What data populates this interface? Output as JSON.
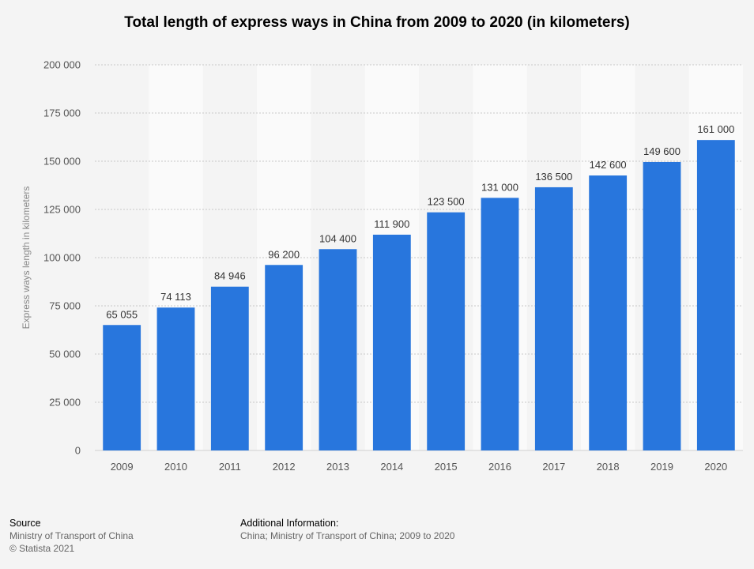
{
  "chart_data": {
    "type": "bar",
    "title": "Total length of express ways in China from 2009 to 2020 (in kilometers)",
    "ylabel": "Express ways length in kilometers",
    "xlabel": "",
    "categories": [
      "2009",
      "2010",
      "2011",
      "2012",
      "2013",
      "2014",
      "2015",
      "2016",
      "2017",
      "2018",
      "2019",
      "2020"
    ],
    "values": [
      65055,
      74113,
      84946,
      96200,
      104400,
      111900,
      123500,
      131000,
      136500,
      142600,
      149600,
      161000
    ],
    "value_labels": [
      "65 055",
      "74 113",
      "84 946",
      "96 200",
      "104 400",
      "111 900",
      "123 500",
      "131 000",
      "136 500",
      "142 600",
      "149 600",
      "161 000"
    ],
    "ylim": [
      0,
      200000
    ],
    "yticks": [
      0,
      25000,
      50000,
      75000,
      100000,
      125000,
      150000,
      175000,
      200000
    ],
    "ytick_labels": [
      "0",
      "25 000",
      "50 000",
      "75 000",
      "100 000",
      "125 000",
      "150 000",
      "175 000",
      "200 000"
    ],
    "grid": true,
    "bar_color": "#2876dd"
  },
  "footer": {
    "source_heading": "Source",
    "source_lines": [
      "Ministry of Transport of China",
      "© Statista 2021"
    ],
    "additional_heading": "Additional Information:",
    "additional_text": "China; Ministry of Transport of China; 2009 to 2020"
  }
}
